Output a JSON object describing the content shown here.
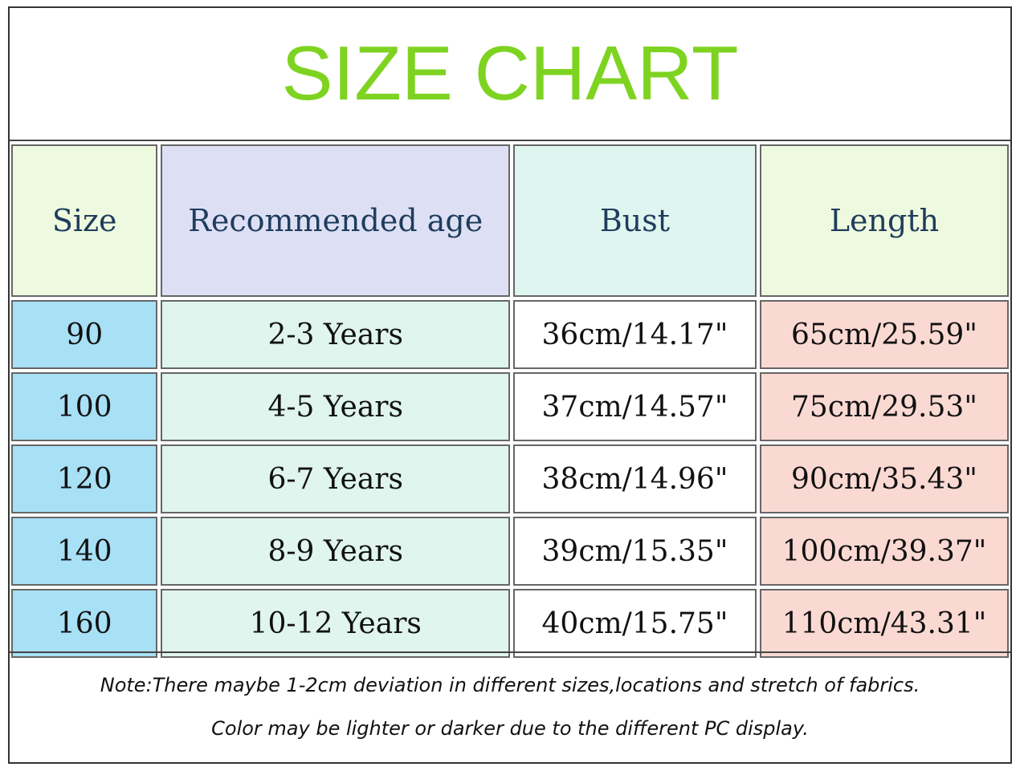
{
  "title": "SIZE CHART",
  "table": {
    "header": [
      "Size",
      "Recommended age",
      "Bust",
      "Length"
    ],
    "rows": [
      [
        "90",
        "2-3 Years",
        "36cm/14.17\"",
        "65cm/25.59\""
      ],
      [
        "100",
        "4-5 Years",
        "37cm/14.57\"",
        "75cm/29.53\""
      ],
      [
        "120",
        "6-7 Years",
        "38cm/14.96\"",
        "90cm/35.43\""
      ],
      [
        "140",
        "8-9 Years",
        "39cm/15.35\"",
        "100cm/39.37\""
      ],
      [
        "160",
        "10-12 Years",
        "40cm/15.75\"",
        "110cm/43.31\""
      ]
    ]
  },
  "notes": [
    "Note:There maybe 1-2cm deviation in different sizes,locations and stretch of fabrics.",
    "Color may be lighter or darker due to the different PC display."
  ]
}
